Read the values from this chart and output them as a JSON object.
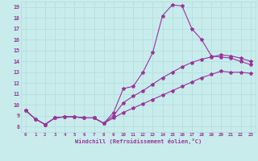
{
  "background_color": "#c8ecec",
  "line_color": "#993399",
  "grid_color": "#b8e0e0",
  "xlabel": "Windchill (Refroidissement éolien,°C)",
  "xlim": [
    -0.5,
    23.5
  ],
  "ylim": [
    7.5,
    19.5
  ],
  "yticks": [
    8,
    9,
    10,
    11,
    12,
    13,
    14,
    15,
    16,
    17,
    18,
    19
  ],
  "xticks": [
    0,
    1,
    2,
    3,
    4,
    5,
    6,
    7,
    8,
    9,
    10,
    11,
    12,
    13,
    14,
    15,
    16,
    17,
    18,
    19,
    20,
    21,
    22,
    23
  ],
  "line1_x": [
    0,
    1,
    2,
    3,
    4,
    5,
    6,
    7,
    8,
    9,
    10,
    11,
    12,
    13,
    14,
    15,
    16,
    17,
    18,
    19,
    20,
    21,
    22,
    23
  ],
  "line1_y": [
    9.5,
    8.7,
    8.2,
    8.8,
    8.9,
    8.9,
    8.8,
    8.8,
    8.3,
    9.3,
    11.5,
    11.7,
    13.0,
    14.8,
    18.2,
    19.2,
    19.1,
    17.0,
    16.0,
    14.5,
    14.4,
    14.3,
    14.0,
    13.7
  ],
  "line2_x": [
    0,
    1,
    2,
    3,
    4,
    5,
    6,
    7,
    8,
    9,
    10,
    11,
    12,
    13,
    14,
    15,
    16,
    17,
    18,
    19,
    20,
    21,
    22,
    23
  ],
  "line2_y": [
    9.5,
    8.7,
    8.2,
    8.8,
    8.9,
    8.9,
    8.8,
    8.8,
    8.3,
    9.0,
    10.2,
    10.8,
    11.3,
    11.9,
    12.5,
    13.0,
    13.5,
    13.9,
    14.2,
    14.4,
    14.6,
    14.5,
    14.3,
    14.0
  ],
  "line3_x": [
    0,
    1,
    2,
    3,
    4,
    5,
    6,
    7,
    8,
    9,
    10,
    11,
    12,
    13,
    14,
    15,
    16,
    17,
    18,
    19,
    20,
    21,
    22,
    23
  ],
  "line3_y": [
    9.5,
    8.7,
    8.2,
    8.8,
    8.9,
    8.9,
    8.8,
    8.8,
    8.3,
    8.8,
    9.3,
    9.7,
    10.1,
    10.5,
    10.9,
    11.3,
    11.7,
    12.1,
    12.5,
    12.8,
    13.1,
    13.0,
    13.0,
    12.9
  ]
}
